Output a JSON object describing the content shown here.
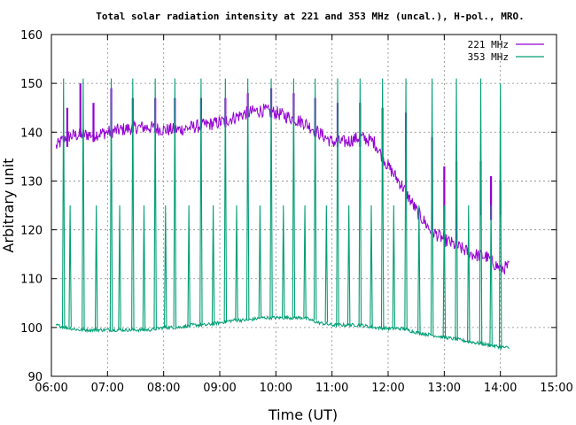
{
  "chart_data": {
    "type": "line",
    "title": "Total solar radiation intensity at 221 and 353 MHz (uncal.), H-pol., MRO.",
    "xlabel": "Time (UT)",
    "ylabel": "Arbitrary unit",
    "xlim": [
      "06:00",
      "15:00"
    ],
    "ylim": [
      90,
      160
    ],
    "x_ticks": [
      "06:00",
      "07:00",
      "08:00",
      "09:00",
      "10:00",
      "11:00",
      "12:00",
      "13:00",
      "14:00",
      "15:00"
    ],
    "y_ticks": [
      90,
      100,
      110,
      120,
      130,
      140,
      150,
      160
    ],
    "grid": true,
    "legend": "top-right",
    "series": [
      {
        "name": "221 MHz",
        "color": "#9400d3",
        "x": [
          "06:05",
          "06:15",
          "06:30",
          "06:45",
          "07:00",
          "07:15",
          "07:30",
          "07:45",
          "08:00",
          "08:15",
          "08:30",
          "08:45",
          "09:00",
          "09:15",
          "09:30",
          "09:45",
          "10:00",
          "10:15",
          "10:30",
          "10:45",
          "11:00",
          "11:15",
          "11:30",
          "11:45",
          "12:00",
          "12:15",
          "12:30",
          "12:45",
          "13:00",
          "13:15",
          "13:30",
          "13:45",
          "14:00",
          "14:10"
        ],
        "values": [
          137,
          139,
          139.5,
          139.5,
          140,
          140.5,
          141,
          141,
          140.5,
          140.5,
          141,
          141.5,
          142,
          143,
          144,
          144.5,
          144,
          143,
          142,
          140,
          138,
          138,
          139,
          138,
          133,
          129,
          124,
          120,
          118,
          116.5,
          115,
          114.5,
          112,
          112.5
        ]
      },
      {
        "name": "353 MHz",
        "color": "#009e73",
        "x": [
          "06:05",
          "06:15",
          "06:30",
          "06:45",
          "07:00",
          "07:15",
          "07:30",
          "07:45",
          "08:00",
          "08:15",
          "08:30",
          "08:45",
          "09:00",
          "09:15",
          "09:30",
          "09:45",
          "10:00",
          "10:15",
          "10:30",
          "10:45",
          "11:00",
          "11:15",
          "11:30",
          "11:45",
          "12:00",
          "12:15",
          "12:30",
          "12:45",
          "13:00",
          "13:15",
          "13:30",
          "13:45",
          "14:00",
          "14:10"
        ],
        "values": [
          100.5,
          100,
          99.5,
          99.5,
          99.5,
          99.5,
          99.5,
          99.5,
          100,
          100,
          100.5,
          100.5,
          101,
          101.5,
          101.5,
          102,
          102,
          102,
          102,
          101,
          100.5,
          100.5,
          100.5,
          100,
          99.8,
          99.8,
          99,
          98.5,
          98,
          97.5,
          97,
          96.5,
          96,
          95.8
        ]
      }
    ],
    "spikes_353": [
      {
        "t": "06:13",
        "peak": 151,
        "base": 100
      },
      {
        "t": "06:20",
        "peak": 125,
        "base": 100
      },
      {
        "t": "06:34",
        "peak": 151,
        "base": 99.5
      },
      {
        "t": "06:48",
        "peak": 125,
        "base": 99.5
      },
      {
        "t": "07:04",
        "peak": 151,
        "base": 99.5
      },
      {
        "t": "07:13",
        "peak": 125,
        "base": 99.5
      },
      {
        "t": "07:27",
        "peak": 151,
        "base": 99.5
      },
      {
        "t": "07:39",
        "peak": 125,
        "base": 99.5
      },
      {
        "t": "07:51",
        "peak": 151,
        "base": 99.5
      },
      {
        "t": "08:02",
        "peak": 125,
        "base": 100
      },
      {
        "t": "08:12",
        "peak": 151,
        "base": 100
      },
      {
        "t": "08:27",
        "peak": 125,
        "base": 100
      },
      {
        "t": "08:40",
        "peak": 151,
        "base": 100.5
      },
      {
        "t": "08:53",
        "peak": 125,
        "base": 100.5
      },
      {
        "t": "09:06",
        "peak": 151,
        "base": 101
      },
      {
        "t": "09:18",
        "peak": 125,
        "base": 101.5
      },
      {
        "t": "09:30",
        "peak": 151,
        "base": 101.5
      },
      {
        "t": "09:43",
        "peak": 125,
        "base": 102
      },
      {
        "t": "09:55",
        "peak": 151,
        "base": 102
      },
      {
        "t": "10:08",
        "peak": 125,
        "base": 102
      },
      {
        "t": "10:19",
        "peak": 151,
        "base": 102
      },
      {
        "t": "10:31",
        "peak": 125,
        "base": 102
      },
      {
        "t": "10:42",
        "peak": 151,
        "base": 101.5
      },
      {
        "t": "10:54",
        "peak": 125,
        "base": 101
      },
      {
        "t": "11:06",
        "peak": 151,
        "base": 100.5
      },
      {
        "t": "11:18",
        "peak": 125,
        "base": 100.5
      },
      {
        "t": "11:30",
        "peak": 151,
        "base": 100.5
      },
      {
        "t": "11:42",
        "peak": 125,
        "base": 100
      },
      {
        "t": "11:54",
        "peak": 151,
        "base": 100
      },
      {
        "t": "12:06",
        "peak": 125,
        "base": 99.8
      },
      {
        "t": "12:19",
        "peak": 151,
        "base": 99.5
      },
      {
        "t": "12:33",
        "peak": 125,
        "base": 99
      },
      {
        "t": "12:47",
        "peak": 151,
        "base": 98.5
      },
      {
        "t": "13:00",
        "peak": 125,
        "base": 98
      },
      {
        "t": "13:13",
        "peak": 151,
        "base": 97.5
      },
      {
        "t": "13:26",
        "peak": 125,
        "base": 97
      },
      {
        "t": "13:39",
        "peak": 151,
        "base": 96.5
      },
      {
        "t": "13:50",
        "peak": 125,
        "base": 96.2
      },
      {
        "t": "14:00",
        "peak": 150,
        "base": 96
      }
    ],
    "spikes_221": [
      {
        "t": "06:17",
        "top": 145,
        "bottom": 137
      },
      {
        "t": "06:31",
        "top": 150,
        "bottom": 139
      },
      {
        "t": "06:45",
        "top": 146,
        "bottom": 138
      },
      {
        "t": "07:04",
        "top": 149,
        "bottom": 139
      },
      {
        "t": "07:27",
        "top": 147,
        "bottom": 140
      },
      {
        "t": "07:51",
        "top": 147,
        "bottom": 140
      },
      {
        "t": "08:12",
        "top": 147,
        "bottom": 140
      },
      {
        "t": "08:40",
        "top": 147,
        "bottom": 141
      },
      {
        "t": "09:06",
        "top": 147,
        "bottom": 141
      },
      {
        "t": "09:30",
        "top": 148,
        "bottom": 143
      },
      {
        "t": "09:55",
        "top": 149,
        "bottom": 143
      },
      {
        "t": "10:19",
        "top": 148,
        "bottom": 142
      },
      {
        "t": "10:42",
        "top": 147,
        "bottom": 139
      },
      {
        "t": "11:06",
        "top": 146,
        "bottom": 137
      },
      {
        "t": "11:30",
        "top": 146,
        "bottom": 137
      },
      {
        "t": "11:54",
        "top": 145,
        "bottom": 135
      },
      {
        "t": "12:19",
        "top": 144,
        "bottom": 128
      },
      {
        "t": "12:47",
        "top": 139,
        "bottom": 120
      },
      {
        "t": "13:00",
        "top": 133,
        "bottom": 119
      },
      {
        "t": "13:13",
        "top": 134,
        "bottom": 118
      },
      {
        "t": "13:39",
        "top": 134,
        "bottom": 123
      },
      {
        "t": "13:50",
        "top": 131,
        "bottom": 122
      },
      {
        "t": "14:00",
        "top": 130,
        "bottom": 123
      }
    ]
  }
}
